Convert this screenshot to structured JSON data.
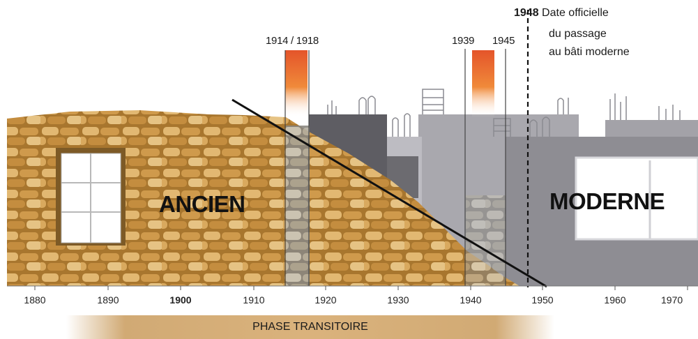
{
  "periods": {
    "war1": "1914 / 1918",
    "war2_start": "1939",
    "war2_end": "1945"
  },
  "reference": {
    "year": "1948",
    "text_line1": "Date officielle",
    "text_line2": "du passage",
    "text_line3": "au bâti moderne"
  },
  "labels": {
    "ancien": "ANCIEN",
    "moderne": "MODERNE",
    "phase": "PHASE TRANSITOIRE"
  },
  "axis": {
    "ticks": [
      "1880",
      "1890",
      "1900",
      "1910",
      "1920",
      "1930",
      "1940",
      "1950",
      "1960",
      "1970"
    ],
    "bold_tick": "1900"
  },
  "colors": {
    "stone": "#c9923f",
    "stone_light": "#e4bd7a",
    "concrete": "#9d9ca2",
    "concrete_dark": "#6f6e74",
    "war_band": "#e6602a",
    "phase_bar": "#d6aa6e"
  }
}
